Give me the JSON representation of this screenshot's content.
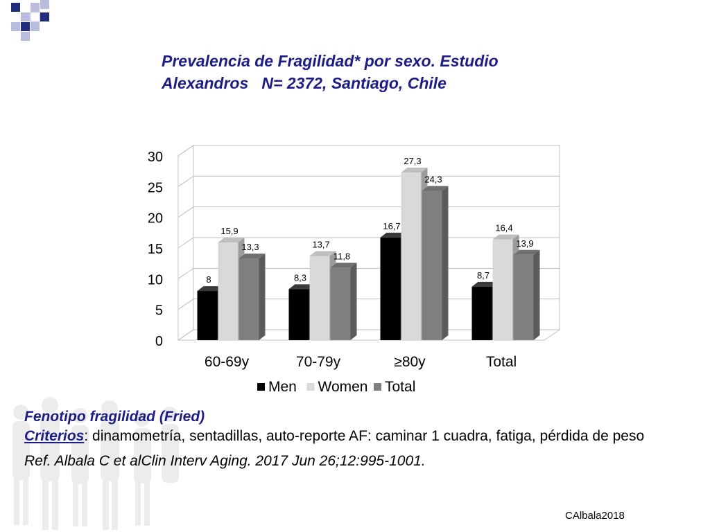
{
  "title": {
    "line1": "Prevalencia de Fragilidad* por sexo. Estudio",
    "line2": "Alexandros   N= 2372, Santiago, Chile"
  },
  "colors": {
    "title": "#1c1c8e",
    "men": "#000000",
    "women": "#d9d9d9",
    "total": "#7f7f7f",
    "deco_dark": "#1f2d7a",
    "deco_light": "#b8bcdd"
  },
  "chart_data": {
    "type": "bar",
    "categories": [
      "60-69y",
      "70-79y",
      "≥80y",
      "Total"
    ],
    "series": [
      {
        "name": "Men",
        "values": [
          8,
          8.3,
          16.7,
          8.7
        ],
        "labels": [
          "8",
          "8,3",
          "16,7",
          "8,7"
        ],
        "color": "#000000"
      },
      {
        "name": "Women",
        "values": [
          15.9,
          13.7,
          27.3,
          16.4
        ],
        "labels": [
          "15,9",
          "13,7",
          "27,3",
          "16,4"
        ],
        "color": "#d9d9d9"
      },
      {
        "name": "Total",
        "values": [
          13.3,
          11.8,
          24.3,
          13.9
        ],
        "labels": [
          "13,3",
          "11,8",
          "24,3",
          "13,9"
        ],
        "color": "#7f7f7f"
      }
    ],
    "ylim": [
      0,
      30
    ],
    "yticks": [
      0,
      5,
      10,
      15,
      20,
      25,
      30
    ],
    "grid": true,
    "legend": "bottom",
    "style": "3d-clustered-column"
  },
  "notes": {
    "heading": "Fenotipo fragilidad (Fried)",
    "criteria_label": "Criterios",
    "criteria_text": ": dinamometría, sentadillas, auto-reporte AF: caminar 1 cuadra, fatiga, pérdida de peso",
    "reference": "Ref. Albala C et alClin Interv Aging. 2017 Jun 26;12:995-1001."
  },
  "credit": "CAlbala2018"
}
